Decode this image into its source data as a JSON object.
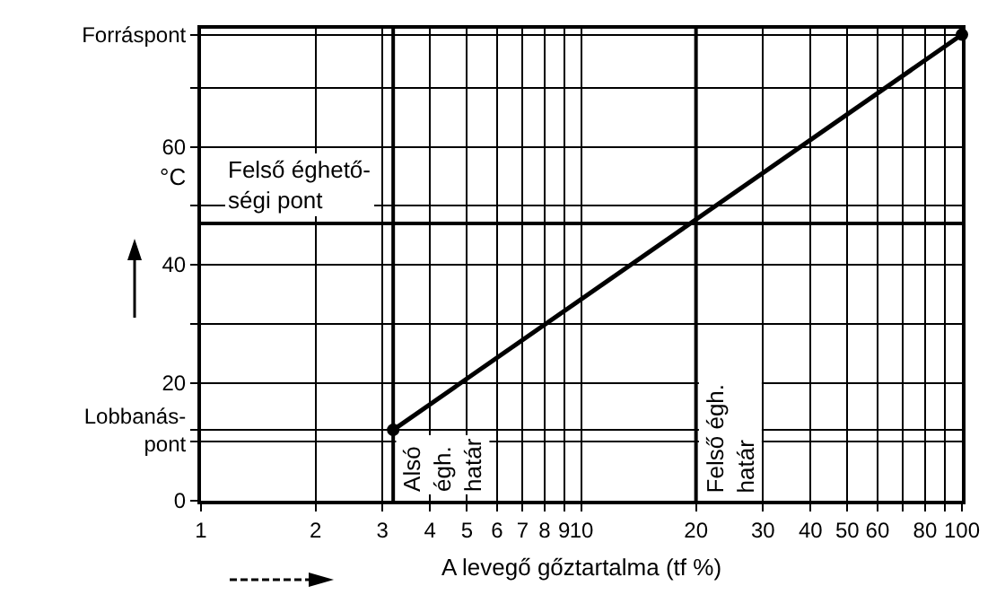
{
  "chart_data": {
    "type": "line",
    "xlabel": "A levegő gőztartalma (tf %)",
    "ylabel": "°C",
    "x": [
      3.2,
      100
    ],
    "series": [
      {
        "color": "#000000",
        "values": [
          12,
          79
        ]
      }
    ],
    "marker": "circle",
    "line_style": "solid",
    "log": "x",
    "xlim": [
      1,
      100
    ],
    "xticks": [
      1,
      2,
      3,
      4,
      5,
      6,
      7,
      8,
      9,
      10,
      20,
      30,
      40,
      50,
      60,
      {
        "value": 70,
        "label": null
      },
      80,
      {
        "value": 90,
        "label": null
      },
      100
    ],
    "ylim": [
      0,
      80
    ],
    "yticks": [
      0,
      {
        "value": 10,
        "label": null
      },
      {
        "value": 12,
        "label": "Lobbanás-\npont"
      },
      20,
      {
        "value": 30,
        "label": null
      },
      40,
      {
        "value": 50,
        "label": null
      },
      60,
      {
        "value": 70,
        "label": null
      },
      {
        "value": 79,
        "label": "Forráspont"
      }
    ],
    "grid": true,
    "ref_lines": [
      {
        "axis": "y",
        "value": 47,
        "label": "Felső éghető-\nségi pont"
      },
      {
        "axis": "x",
        "value": 3.2,
        "label": "Alsó\négh.\nhatár"
      },
      {
        "axis": "x",
        "value": 20,
        "label": "Felső égh.\nhatár"
      }
    ]
  }
}
